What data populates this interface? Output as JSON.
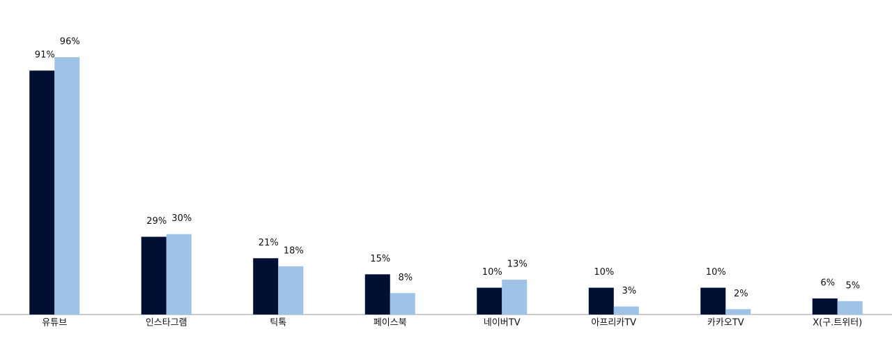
{
  "chart_data": {
    "type": "bar",
    "categories": [
      "유튜브",
      "인스타그램",
      "틱톡",
      "페이스북",
      "네이버TV",
      "아프리카TV",
      "카카오TV",
      "X(구.트위터)"
    ],
    "series": [
      {
        "color": "#001033",
        "values": [
          91,
          29,
          21,
          15,
          10,
          10,
          10,
          6
        ],
        "value_labels": [
          "91%",
          "29%",
          "21%",
          "15%",
          "10%",
          "10%",
          "10%",
          "6%"
        ]
      },
      {
        "color": "#9fc3e6",
        "values": [
          96,
          30,
          18,
          8,
          13,
          3,
          2,
          5
        ],
        "value_labels": [
          "96%",
          "30%",
          "18%",
          "8%",
          "13%",
          "3%",
          "2%",
          "5%"
        ]
      }
    ]
  }
}
